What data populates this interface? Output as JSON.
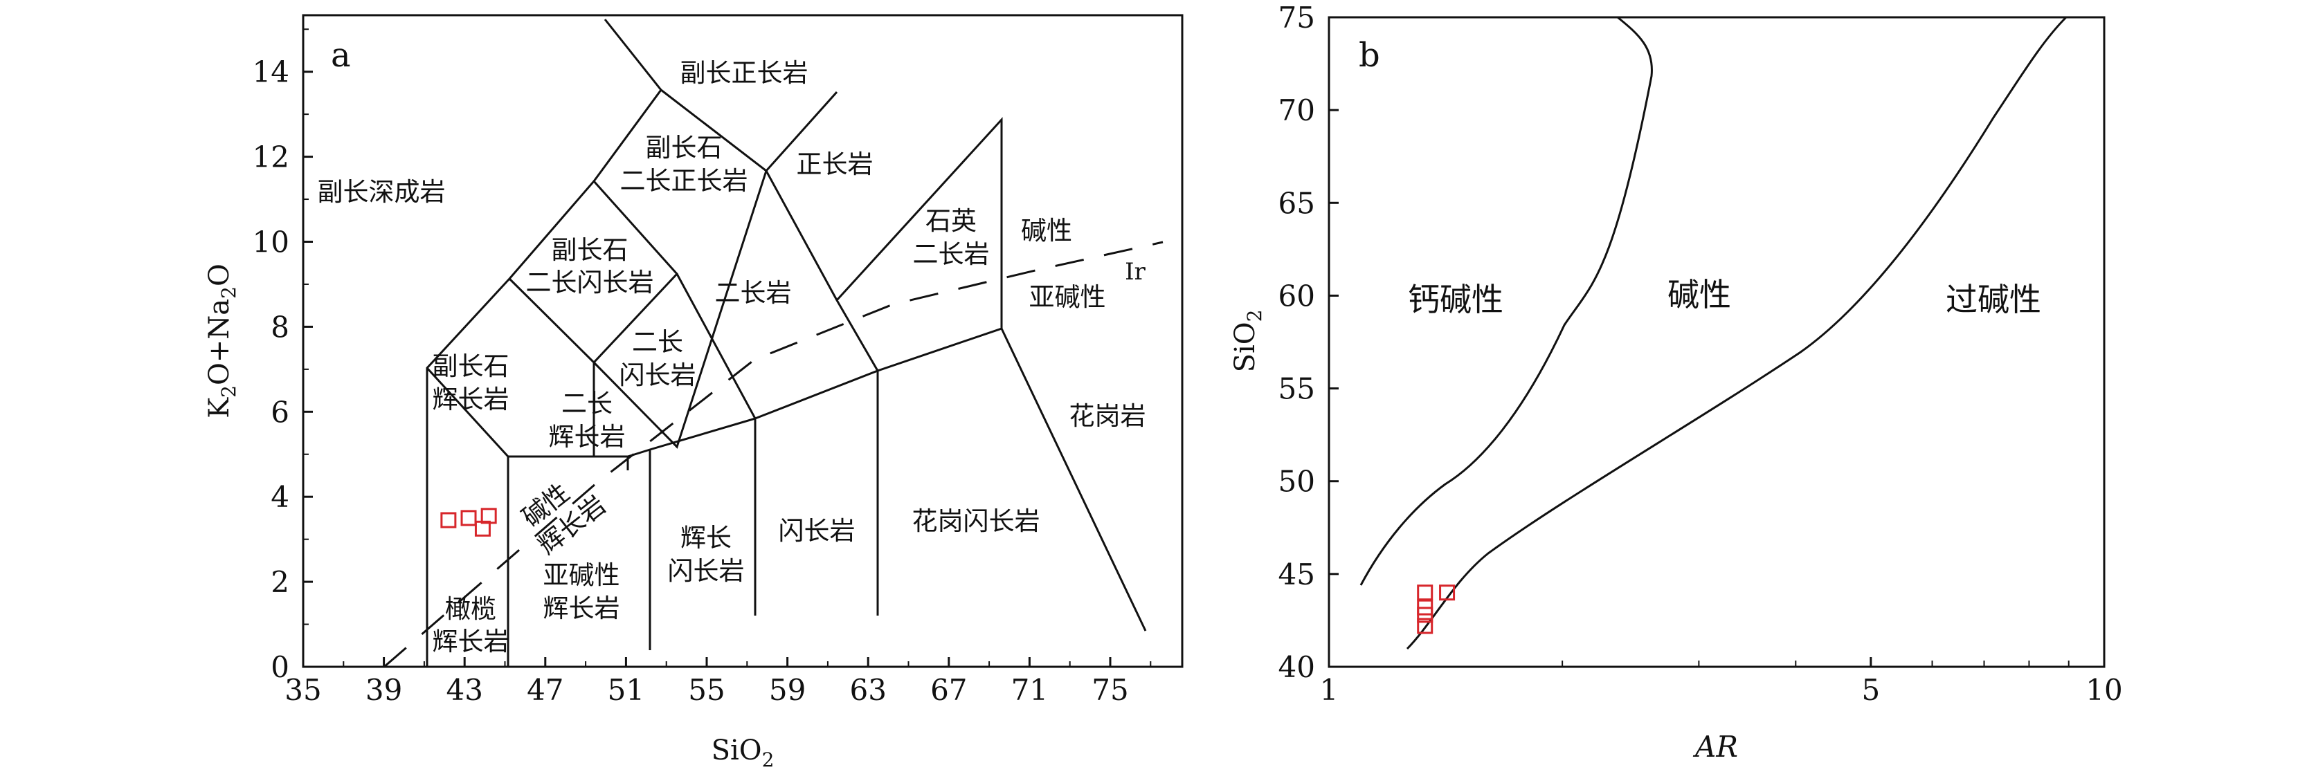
{
  "panel_a": {
    "panel_label": "a",
    "x_axis_label_base": "SiO",
    "x_axis_label_sub": "2",
    "y_axis_label": {
      "p1": "K",
      "s1": "2",
      "p2": "O+Na",
      "s2": "2",
      "p3": "O"
    },
    "x_ticks": [
      "35",
      "39",
      "43",
      "47",
      "51",
      "55",
      "59",
      "63",
      "67",
      "71",
      "75"
    ],
    "y_ticks": [
      "0",
      "2",
      "4",
      "6",
      "8",
      "10",
      "12",
      "14"
    ],
    "field_labels": {
      "foid_syenite": "副长正长岩",
      "foid_plutonite": "副长深成岩",
      "foid_monzosyenite_l1": "副长石",
      "foid_monzosyenite_l2": "二长正长岩",
      "syenite": "正长岩",
      "foid_monzodiorite_l1": "副长石",
      "foid_monzodiorite_l2": "二长闪长岩",
      "quartz_monzonite_l1": "石英",
      "quartz_monzonite_l2": "二长岩",
      "alkaline": "碱性",
      "ir": "Ir",
      "monzonite": "二长岩",
      "subalkaline": "亚碱性",
      "foid_gabbro_l1": "副长石",
      "foid_gabbro_l2": "辉长岩",
      "monzodiorite_l1": "二长",
      "monzodiorite_l2": "闪长岩",
      "monzogabbro_l1": "二长",
      "monzogabbro_l2": "辉长岩",
      "granite": "花岗岩",
      "alkali_gabbro_l1": "碱性",
      "alkali_gabbro_l2": "辉长岩",
      "gabbroic_diorite_l1": "辉长",
      "gabbroic_diorite_l2": "闪长岩",
      "diorite": "闪长岩",
      "granodiorite": "花岗闪长岩",
      "subalkaline_gabbro_l1": "亚碱性",
      "subalkaline_gabbro_l2": "辉长岩",
      "peridot_gabbro_l1": "橄榄",
      "peridot_gabbro_l2": "辉长岩"
    }
  },
  "panel_b": {
    "panel_label": "b",
    "x_axis_label": "AR",
    "y_axis_label_base": "SiO",
    "y_axis_label_sub": "2",
    "x_ticks": [
      "1",
      "5",
      "10"
    ],
    "y_ticks": [
      "40",
      "45",
      "50",
      "55",
      "60",
      "65",
      "70",
      "75"
    ],
    "field_labels": {
      "calc_alkaline": "钙碱性",
      "alkaline": "碱性",
      "peralkaline": "过碱性"
    }
  },
  "chart_data": [
    {
      "type": "scatter",
      "xlabel": "SiO2",
      "ylabel": "K2O+Na2O",
      "xlim": [
        35,
        77
      ],
      "ylim": [
        0,
        15.5
      ],
      "marker": "open-square",
      "marker_color": "#d7262b",
      "series": [
        {
          "x": [
            42.2,
            43.2,
            44.2,
            43.9
          ],
          "y": [
            3.45,
            3.5,
            3.55,
            3.25
          ]
        }
      ]
    },
    {
      "type": "scatter",
      "xlabel": "AR",
      "ylabel": "SiO2",
      "x_scale": "log",
      "xlim": [
        1,
        10
      ],
      "ylim": [
        40,
        75
      ],
      "marker": "open-square",
      "marker_color": "#d7262b",
      "series": [
        {
          "x": [
            1.33,
            1.33,
            1.42,
            1.33,
            1.33
          ],
          "y": [
            44.0,
            43.2,
            44.0,
            42.8,
            42.2
          ]
        }
      ]
    }
  ]
}
